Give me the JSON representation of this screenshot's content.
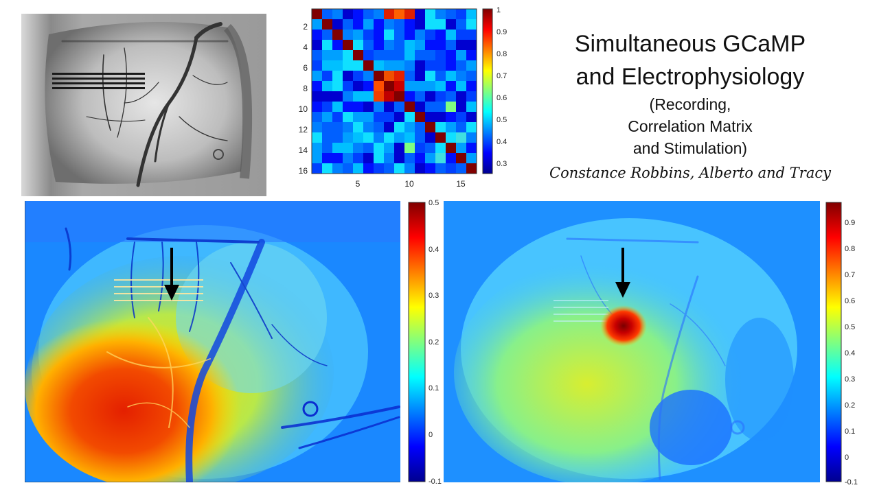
{
  "title": {
    "line1": "Simultaneous GCaMP",
    "line2": "and Electrophysiology",
    "sub1": "(Recording,",
    "sub2": "Correlation Matrix",
    "sub3": "and Stimulation)"
  },
  "authors": "Constance Robbins, Alberto and Tracy",
  "correlation_matrix": {
    "y_ticks": [
      "2",
      "4",
      "6",
      "8",
      "10",
      "12",
      "14",
      "16"
    ],
    "x_ticks": [
      "5",
      "10",
      "15"
    ],
    "colorbar_ticks": [
      "1",
      "0.9",
      "0.8",
      "0.7",
      "0.6",
      "0.5",
      "0.4",
      "0.3"
    ]
  },
  "left_map": {
    "colorbar_ticks": [
      "0.5",
      "0.4",
      "0.3",
      "0.2",
      "0.1",
      "0",
      "-0.1"
    ]
  },
  "right_map": {
    "colorbar_ticks": [
      "0.9",
      "0.8",
      "0.7",
      "0.6",
      "0.5",
      "0.4",
      "0.3",
      "0.2",
      "0.1",
      "0",
      "-0.1"
    ]
  },
  "colors": {
    "jet_dark_red": "#800000",
    "jet_red": "#ff0000",
    "jet_yellow": "#ffff00",
    "jet_cyan": "#00ffff",
    "jet_blue": "#0000ff",
    "jet_dark_blue": "#00008f"
  }
}
